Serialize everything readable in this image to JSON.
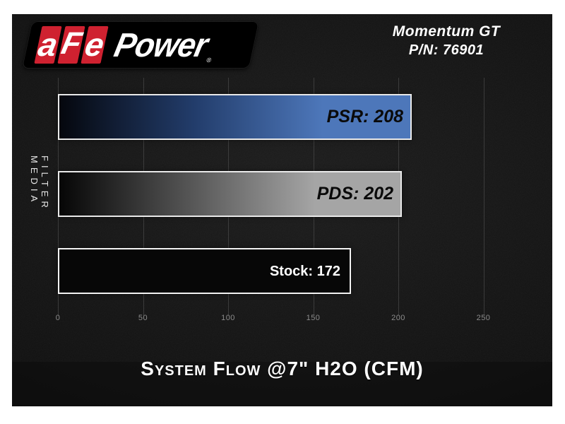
{
  "logo": {
    "tile_letters": [
      "a",
      "F",
      "e"
    ],
    "wordmark": "Power",
    "registered": "®",
    "red": "#cf2130"
  },
  "header": {
    "line1": "Momentum GT",
    "line2": "P/N: 76901"
  },
  "chart_data": {
    "type": "bar",
    "orientation": "horizontal",
    "categories": [
      "PSR",
      "PDS",
      "Stock"
    ],
    "values": [
      208,
      202,
      172
    ],
    "bar_labels": [
      "PSR: 208",
      "PDS: 202",
      "Stock: 172"
    ],
    "xlabel": "System Flow @7\" H2O (CFM)",
    "ylabel": "FILTER MEDIA",
    "xlim": [
      0,
      250
    ],
    "xticks": [
      0,
      50,
      100,
      150,
      200,
      250
    ],
    "grid": true,
    "legend_position": "none",
    "background": "#111111",
    "gridline_color": "#474747",
    "tick_color": "#8c8c8c",
    "bar_styles": [
      {
        "fill": "gradient",
        "from": "#05070d",
        "mid": "#223c6a",
        "to": "#4d77ba",
        "border": "#e9e9e9",
        "label_color": "#0a0a0a",
        "label_italic": true,
        "label_size": 25
      },
      {
        "fill": "gradient",
        "from": "#060606",
        "mid": "#555555",
        "to": "#a5a5a5",
        "border": "#e9e9e9",
        "label_color": "#0a0a0a",
        "label_italic": true,
        "label_size": 25
      },
      {
        "fill": "solid",
        "color": "#070707",
        "border": "#f2f2f2",
        "label_color": "#ffffff",
        "label_italic": false,
        "label_size": 20
      }
    ]
  }
}
